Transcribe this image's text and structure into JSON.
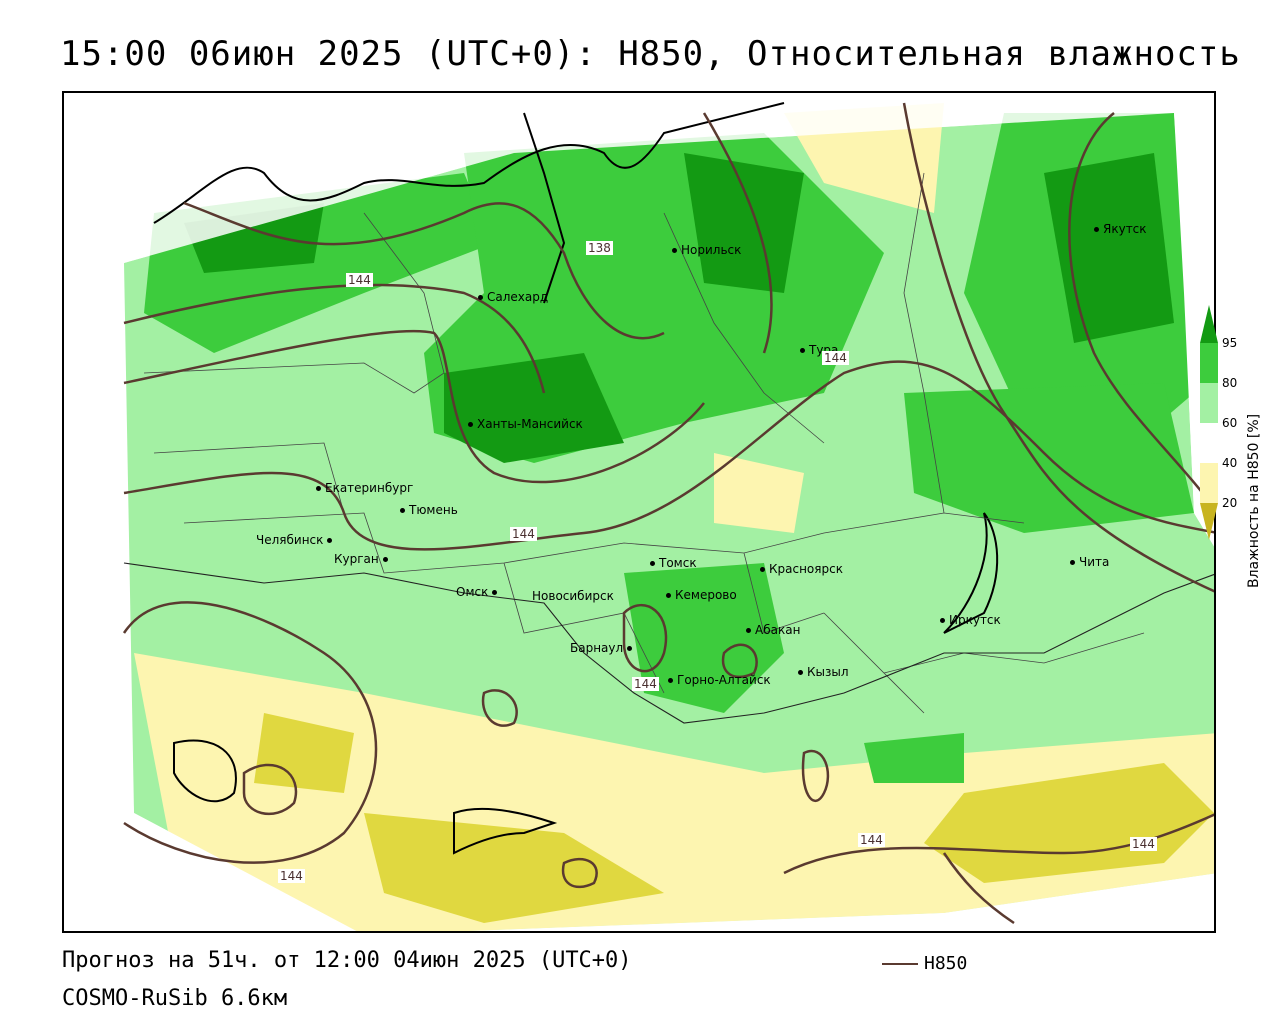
{
  "header": {
    "title": "15:00 06июн 2025 (UTC+0): H850, Относительная влажность"
  },
  "map": {
    "colors": {
      "green_dark": "#139a13",
      "green": "#3dcc3d",
      "green_light": "#a3f0a3",
      "yellow_light": "#fdf5b0",
      "yellow": "#e0d840",
      "contour": "#5a3a30"
    },
    "cities": [
      {
        "name": "Якутск"
      },
      {
        "name": "Норильск"
      },
      {
        "name": "Салехард"
      },
      {
        "name": "Тура"
      },
      {
        "name": "Ханты-Мансийск"
      },
      {
        "name": "Екатеринбург"
      },
      {
        "name": "Тюмень"
      },
      {
        "name": "Челябинск"
      },
      {
        "name": "Курган"
      },
      {
        "name": "Омск"
      },
      {
        "name": "Томск"
      },
      {
        "name": "Красноярск"
      },
      {
        "name": "Новосибирск"
      },
      {
        "name": "Кемерово"
      },
      {
        "name": "Абакан"
      },
      {
        "name": "Барнаул"
      },
      {
        "name": "Горно-Алтайск"
      },
      {
        "name": "Кызыл"
      },
      {
        "name": "Иркутск"
      },
      {
        "name": "Чита"
      }
    ],
    "contour_labels": [
      "144",
      "138",
      "144",
      "144",
      "144",
      "144",
      "144",
      "144"
    ]
  },
  "legend": {
    "title": "Влажность на H850 [%]",
    "ticks": [
      "95",
      "80",
      "60",
      "40",
      "20"
    ]
  },
  "footer": {
    "forecast": "Прогноз на 51ч. от 12:00 04июн 2025 (UTC+0)",
    "model": "COSMO-RuSib 6.6км",
    "line_label": "H850"
  }
}
